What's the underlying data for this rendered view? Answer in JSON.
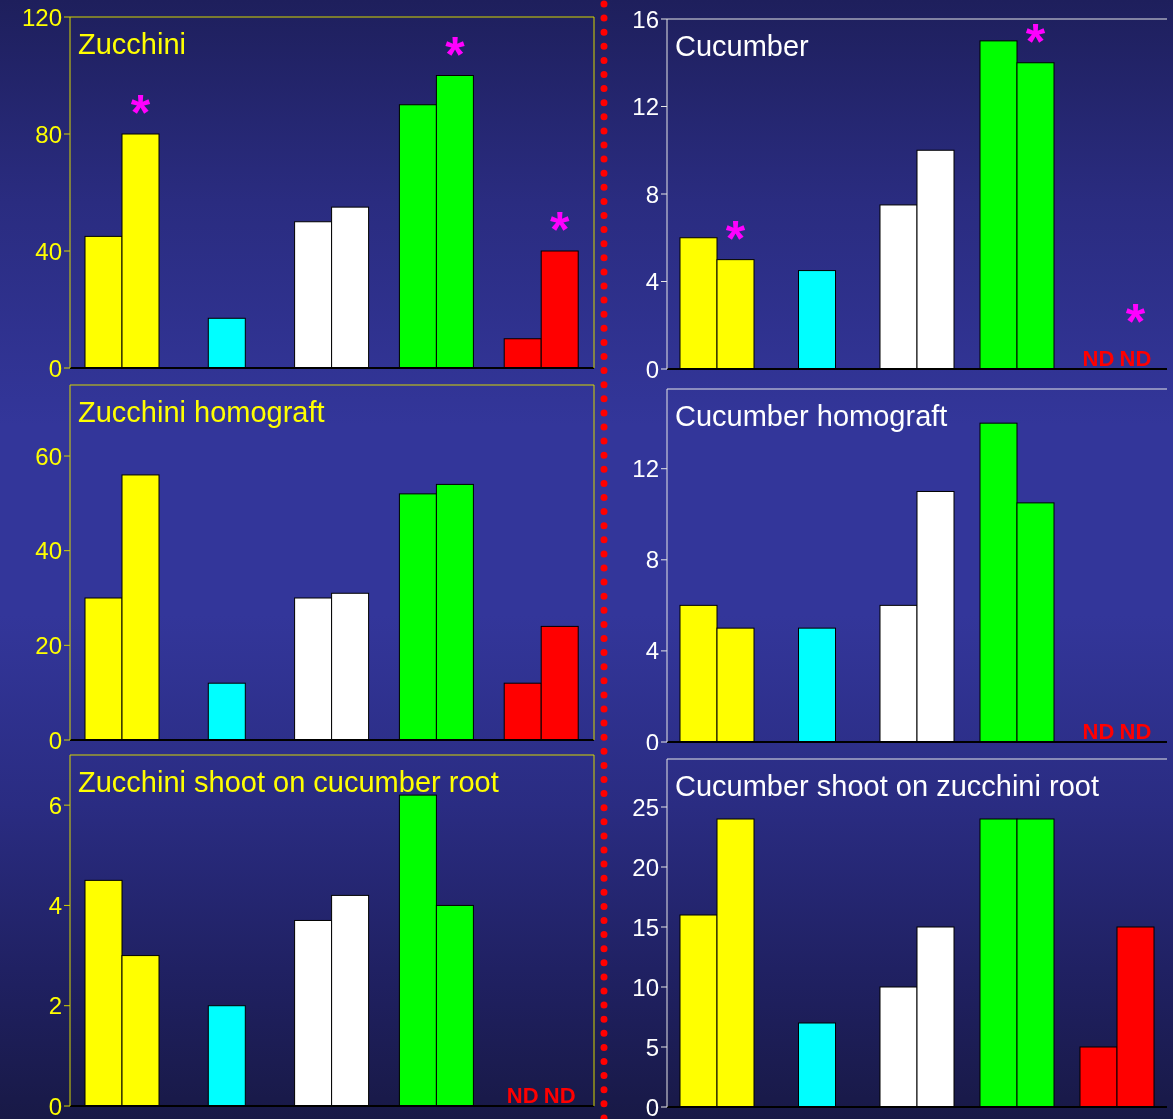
{
  "chart_data": [
    {
      "type": "bar",
      "title": "Zucchini",
      "categories": [
        null,
        null,
        null,
        null,
        null
      ],
      "series": [
        {
          "colors": [
            "#ffff00",
            "#00ffff",
            "#ffffff",
            "#00ff00",
            "#ff0000"
          ],
          "values": [
            45,
            17,
            50,
            90,
            10
          ]
        },
        {
          "colors": [
            "#ffff00",
            null,
            "#ffffff",
            "#00ff00",
            "#ff0000"
          ],
          "values": [
            80,
            null,
            55,
            100,
            40
          ],
          "value_labels": [
            "*",
            null,
            null,
            "*",
            "*"
          ]
        }
      ],
      "ylim": [
        0,
        120
      ],
      "yticks": [
        0,
        40,
        80,
        120
      ]
    },
    {
      "type": "bar",
      "title": "Cucumber",
      "categories": [
        null,
        null,
        null,
        null,
        null
      ],
      "series": [
        {
          "colors": [
            "#ffff00",
            "#00ffff",
            "#ffffff",
            "#00ff00",
            "#ff0000"
          ],
          "values": [
            6,
            4.5,
            7.5,
            15,
            null
          ],
          "value_labels": [
            null,
            null,
            null,
            null,
            "ND"
          ]
        },
        {
          "colors": [
            "#ffff00",
            null,
            "#ffffff",
            "#00ff00",
            "#ff0000"
          ],
          "values": [
            5,
            null,
            10,
            14,
            null
          ],
          "value_labels": [
            "*",
            null,
            null,
            "*",
            "*\nND"
          ]
        }
      ],
      "ylim": [
        0,
        16
      ],
      "yticks": [
        0,
        4,
        8,
        12,
        16
      ]
    },
    {
      "type": "bar",
      "title": "Zucchini homograft",
      "categories": [
        null,
        null,
        null,
        null,
        null
      ],
      "series": [
        {
          "colors": [
            "#ffff00",
            "#00ffff",
            "#ffffff",
            "#00ff00",
            "#ff0000"
          ],
          "values": [
            30,
            12,
            30,
            52,
            12
          ]
        },
        {
          "colors": [
            "#ffff00",
            null,
            "#ffffff",
            "#00ff00",
            "#ff0000"
          ],
          "values": [
            56,
            null,
            31,
            54,
            24
          ]
        }
      ],
      "ylim": [
        0,
        75
      ],
      "yticks": [
        0,
        20,
        40,
        60
      ]
    },
    {
      "type": "bar",
      "title": "Cucumber homograft",
      "categories": [
        null,
        null,
        null,
        null,
        null
      ],
      "series": [
        {
          "colors": [
            "#ffff00",
            "#00ffff",
            "#ffffff",
            "#00ff00",
            "#ff0000"
          ],
          "values": [
            6,
            5,
            6,
            14,
            null
          ],
          "value_labels": [
            null,
            null,
            null,
            null,
            "ND"
          ]
        },
        {
          "colors": [
            "#ffff00",
            null,
            "#ffffff",
            "#00ff00",
            "#ff0000"
          ],
          "values": [
            5,
            null,
            11,
            10.5,
            null
          ],
          "value_labels": [
            null,
            null,
            null,
            null,
            "ND"
          ]
        }
      ],
      "ylim": [
        0,
        15.5
      ],
      "yticks": [
        0,
        4,
        8,
        12
      ]
    },
    {
      "type": "bar",
      "title": "Zucchini shoot on cucumber root",
      "categories": [
        null,
        null,
        null,
        null,
        null
      ],
      "series": [
        {
          "colors": [
            "#ffff00",
            "#00ffff",
            "#ffffff",
            "#00ff00",
            "#ff0000"
          ],
          "values": [
            4.5,
            2,
            3.7,
            6.2,
            null
          ],
          "value_labels": [
            null,
            null,
            null,
            null,
            "ND"
          ]
        },
        {
          "colors": [
            "#ffff00",
            null,
            "#ffffff",
            "#00ff00",
            "#ff0000"
          ],
          "values": [
            3,
            null,
            4.2,
            4,
            null
          ],
          "value_labels": [
            null,
            null,
            null,
            null,
            "ND"
          ]
        }
      ],
      "ylim": [
        0,
        7
      ],
      "yticks": [
        0,
        2,
        4,
        6
      ]
    },
    {
      "type": "bar",
      "title": "Cucumber shoot on zucchini root",
      "categories": [
        null,
        null,
        null,
        null,
        null
      ],
      "series": [
        {
          "colors": [
            "#ffff00",
            "#00ffff",
            "#ffffff",
            "#00ff00",
            "#ff0000"
          ],
          "values": [
            16,
            7,
            10,
            24,
            5
          ]
        },
        {
          "colors": [
            "#ffff00",
            null,
            "#ffffff",
            "#00ff00",
            "#ff0000"
          ],
          "values": [
            24,
            null,
            15,
            24,
            15
          ]
        }
      ],
      "ylim": [
        0,
        29
      ],
      "yticks": [
        0,
        5,
        10,
        15,
        20,
        25
      ]
    }
  ]
}
